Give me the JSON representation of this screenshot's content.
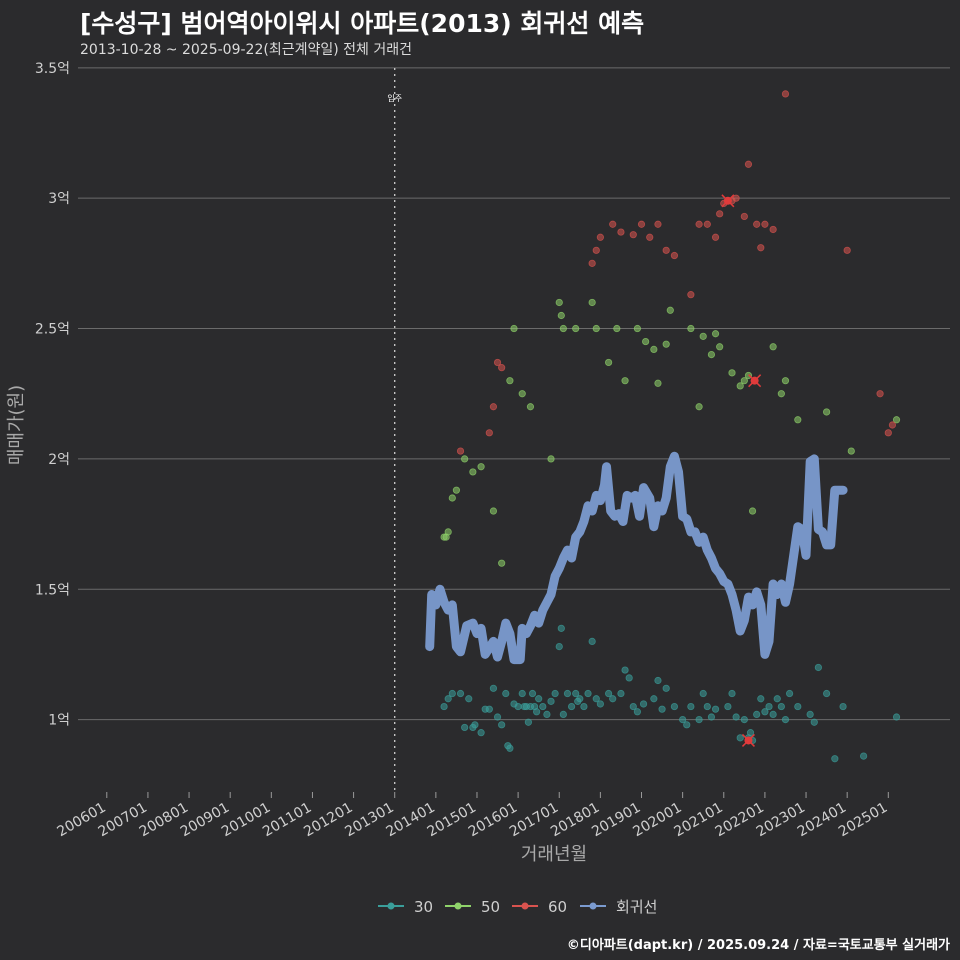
{
  "header": {
    "title": "[수성구] 범어역아이위시 아파트(2013) 회귀선 예측",
    "subtitle": "2013-10-28 ~ 2025-09-22(최근계약일) 전체 거래건"
  },
  "footer": {
    "caption": "©디아파트(dapt.kr) / 2025.09.24 / 자료=국토교통부 실거래가"
  },
  "chart_data": {
    "type": "scatter",
    "title": "[수성구] 범어역아이위시 아파트(2013) 회귀선 예측",
    "subtitle": "2013-10-28 ~ 2025-09-22(최근계약일) 전체 거래건",
    "xlabel": "거래년월",
    "ylabel": "매매가(원)",
    "xlim": [
      2005.3,
      2026.5
    ],
    "ylim": [
      0.73,
      3.53
    ],
    "y_unit": "억",
    "xticks": [
      {
        "value": 2006.0,
        "label": "200601"
      },
      {
        "value": 2007.0,
        "label": "200701"
      },
      {
        "value": 2008.0,
        "label": "200801"
      },
      {
        "value": 2009.0,
        "label": "200901"
      },
      {
        "value": 2010.0,
        "label": "201001"
      },
      {
        "value": 2011.0,
        "label": "201101"
      },
      {
        "value": 2012.0,
        "label": "201201"
      },
      {
        "value": 2013.0,
        "label": "201301"
      },
      {
        "value": 2014.0,
        "label": "201401"
      },
      {
        "value": 2015.0,
        "label": "201501"
      },
      {
        "value": 2016.0,
        "label": "201601"
      },
      {
        "value": 2017.0,
        "label": "201701"
      },
      {
        "value": 2018.0,
        "label": "201801"
      },
      {
        "value": 2019.0,
        "label": "201901"
      },
      {
        "value": 2020.0,
        "label": "202001"
      },
      {
        "value": 2021.0,
        "label": "202101"
      },
      {
        "value": 2022.0,
        "label": "202201"
      },
      {
        "value": 2023.0,
        "label": "202301"
      },
      {
        "value": 2024.0,
        "label": "202401"
      },
      {
        "value": 2025.0,
        "label": "202501"
      }
    ],
    "yticks": [
      {
        "value": 1.0,
        "label": "1억"
      },
      {
        "value": 1.5,
        "label": "1.5억"
      },
      {
        "value": 2.0,
        "label": "2억"
      },
      {
        "value": 2.5,
        "label": "2.5억"
      },
      {
        "value": 3.0,
        "label": "3억"
      },
      {
        "value": 3.5,
        "label": "3.5억"
      }
    ],
    "annotation": {
      "x": 2013.0,
      "label": "입주"
    },
    "legend": {
      "position": "bottom",
      "items": [
        {
          "name": "30",
          "color": "#3a9e9a"
        },
        {
          "name": "50",
          "color": "#8fd36a"
        },
        {
          "name": "60",
          "color": "#d9534f"
        },
        {
          "name": "회귀선",
          "color": "#7b9bd0"
        }
      ]
    },
    "series": [
      {
        "name": "30",
        "color": "#3a9e9a",
        "points": [
          [
            2014.2,
            1.05
          ],
          [
            2014.3,
            1.08
          ],
          [
            2014.4,
            1.1
          ],
          [
            2014.6,
            1.1
          ],
          [
            2014.7,
            0.97
          ],
          [
            2014.8,
            1.08
          ],
          [
            2014.9,
            0.97
          ],
          [
            2014.95,
            0.98
          ],
          [
            2015.1,
            0.95
          ],
          [
            2015.3,
            1.04
          ],
          [
            2015.4,
            1.12
          ],
          [
            2015.5,
            1.01
          ],
          [
            2015.6,
            0.98
          ],
          [
            2015.7,
            1.1
          ],
          [
            2015.75,
            0.9
          ],
          [
            2015.8,
            0.89
          ],
          [
            2015.9,
            1.06
          ],
          [
            2016.0,
            1.05
          ],
          [
            2016.1,
            1.1
          ],
          [
            2016.15,
            1.05
          ],
          [
            2016.2,
            1.05
          ],
          [
            2016.25,
            0.99
          ],
          [
            2016.3,
            1.05
          ],
          [
            2016.35,
            1.1
          ],
          [
            2016.4,
            1.05
          ],
          [
            2016.5,
            1.08
          ],
          [
            2016.6,
            1.05
          ],
          [
            2016.7,
            1.02
          ],
          [
            2016.8,
            1.07
          ],
          [
            2016.9,
            1.1
          ],
          [
            2017.0,
            1.28
          ],
          [
            2017.05,
            1.35
          ],
          [
            2017.1,
            1.02
          ],
          [
            2017.2,
            1.1
          ],
          [
            2017.3,
            1.05
          ],
          [
            2017.4,
            1.1
          ],
          [
            2017.5,
            1.08
          ],
          [
            2017.6,
            1.05
          ],
          [
            2017.7,
            1.1
          ],
          [
            2017.8,
            1.3
          ],
          [
            2017.9,
            1.08
          ],
          [
            2018.0,
            1.06
          ],
          [
            2018.2,
            1.1
          ],
          [
            2018.3,
            1.08
          ],
          [
            2018.5,
            1.1
          ],
          [
            2018.6,
            1.19
          ],
          [
            2018.7,
            1.16
          ],
          [
            2018.8,
            1.05
          ],
          [
            2018.9,
            1.03
          ],
          [
            2019.3,
            1.08
          ],
          [
            2019.4,
            1.15
          ],
          [
            2019.5,
            1.04
          ],
          [
            2019.6,
            1.12
          ],
          [
            2019.8,
            1.05
          ],
          [
            2020.0,
            1.0
          ],
          [
            2020.2,
            1.05
          ],
          [
            2020.4,
            1.0
          ],
          [
            2020.5,
            1.1
          ],
          [
            2020.6,
            1.05
          ],
          [
            2020.7,
            1.01
          ],
          [
            2020.8,
            1.04
          ],
          [
            2021.1,
            1.05
          ],
          [
            2021.2,
            1.1
          ],
          [
            2021.3,
            1.01
          ],
          [
            2021.4,
            0.93
          ],
          [
            2021.5,
            1.0
          ],
          [
            2021.6,
            0.93
          ],
          [
            2021.7,
            0.92
          ],
          [
            2021.8,
            1.02
          ],
          [
            2021.9,
            1.08
          ],
          [
            2022.0,
            1.03
          ],
          [
            2022.1,
            1.05
          ],
          [
            2022.2,
            1.02
          ],
          [
            2022.3,
            1.08
          ],
          [
            2022.4,
            1.05
          ],
          [
            2022.6,
            1.1
          ],
          [
            2022.8,
            1.05
          ],
          [
            2023.1,
            1.02
          ],
          [
            2023.2,
            0.99
          ],
          [
            2023.5,
            1.1
          ],
          [
            2023.7,
            0.85
          ],
          [
            2023.9,
            1.05
          ],
          [
            2024.4,
            0.86
          ],
          [
            2025.2,
            1.01
          ],
          [
            2015.2,
            1.04
          ],
          [
            2016.45,
            1.03
          ],
          [
            2017.45,
            1.07
          ],
          [
            2020.1,
            0.98
          ],
          [
            2021.65,
            0.95
          ],
          [
            2022.5,
            1.0
          ],
          [
            2023.3,
            1.2
          ],
          [
            2019.05,
            1.06
          ]
        ]
      },
      {
        "name": "50",
        "color": "#8fd36a",
        "points": [
          [
            2014.2,
            1.7
          ],
          [
            2014.3,
            1.72
          ],
          [
            2014.4,
            1.85
          ],
          [
            2014.5,
            1.88
          ],
          [
            2014.7,
            2.0
          ],
          [
            2014.9,
            1.95
          ],
          [
            2015.1,
            1.97
          ],
          [
            2015.4,
            1.8
          ],
          [
            2015.6,
            1.6
          ],
          [
            2015.8,
            2.3
          ],
          [
            2015.9,
            2.5
          ],
          [
            2016.1,
            2.25
          ],
          [
            2016.3,
            2.2
          ],
          [
            2016.8,
            2.0
          ],
          [
            2017.0,
            2.6
          ],
          [
            2017.05,
            2.55
          ],
          [
            2017.1,
            2.5
          ],
          [
            2017.4,
            2.5
          ],
          [
            2017.8,
            2.6
          ],
          [
            2017.9,
            2.5
          ],
          [
            2018.2,
            2.37
          ],
          [
            2018.4,
            2.5
          ],
          [
            2018.6,
            2.3
          ],
          [
            2018.9,
            2.5
          ],
          [
            2019.1,
            2.45
          ],
          [
            2019.3,
            2.42
          ],
          [
            2019.4,
            2.29
          ],
          [
            2019.6,
            2.44
          ],
          [
            2019.7,
            2.57
          ],
          [
            2020.2,
            2.5
          ],
          [
            2020.4,
            2.2
          ],
          [
            2020.5,
            2.47
          ],
          [
            2020.7,
            2.4
          ],
          [
            2020.8,
            2.48
          ],
          [
            2020.9,
            2.43
          ],
          [
            2021.2,
            2.33
          ],
          [
            2021.4,
            2.28
          ],
          [
            2021.5,
            2.3
          ],
          [
            2021.6,
            2.32
          ],
          [
            2021.7,
            1.8
          ],
          [
            2022.2,
            2.43
          ],
          [
            2022.4,
            2.25
          ],
          [
            2022.5,
            2.3
          ],
          [
            2022.8,
            2.15
          ],
          [
            2023.5,
            2.18
          ],
          [
            2024.1,
            2.03
          ],
          [
            2025.2,
            2.15
          ],
          [
            2014.25,
            1.7
          ]
        ]
      },
      {
        "name": "60",
        "color": "#d9534f",
        "points": [
          [
            2014.6,
            2.03
          ],
          [
            2015.3,
            2.1
          ],
          [
            2015.4,
            2.2
          ],
          [
            2015.5,
            2.37
          ],
          [
            2015.6,
            2.35
          ],
          [
            2017.8,
            2.75
          ],
          [
            2017.9,
            2.8
          ],
          [
            2018.0,
            2.85
          ],
          [
            2018.3,
            2.9
          ],
          [
            2018.5,
            2.87
          ],
          [
            2018.8,
            2.86
          ],
          [
            2019.0,
            2.9
          ],
          [
            2019.2,
            2.85
          ],
          [
            2019.4,
            2.9
          ],
          [
            2019.6,
            2.8
          ],
          [
            2019.8,
            2.78
          ],
          [
            2020.2,
            2.63
          ],
          [
            2020.4,
            2.9
          ],
          [
            2020.6,
            2.9
          ],
          [
            2020.8,
            2.85
          ],
          [
            2020.9,
            2.94
          ],
          [
            2021.0,
            2.98
          ],
          [
            2021.2,
            2.99
          ],
          [
            2021.3,
            3.0
          ],
          [
            2021.5,
            2.93
          ],
          [
            2021.6,
            3.13
          ],
          [
            2021.8,
            2.9
          ],
          [
            2021.9,
            2.81
          ],
          [
            2022.0,
            2.9
          ],
          [
            2022.2,
            2.88
          ],
          [
            2022.5,
            3.4
          ],
          [
            2024.0,
            2.8
          ],
          [
            2024.8,
            2.25
          ],
          [
            2025.0,
            2.1
          ],
          [
            2025.1,
            2.13
          ]
        ]
      }
    ],
    "highlights": [
      {
        "x": 2021.1,
        "y": 2.99
      },
      {
        "x": 2021.75,
        "y": 2.3
      },
      {
        "x": 2021.6,
        "y": 0.92
      }
    ],
    "regression": {
      "name": "회귀선",
      "color": "#7b9bd0",
      "points": [
        [
          2013.85,
          1.28
        ],
        [
          2013.9,
          1.48
        ],
        [
          2014.0,
          1.44
        ],
        [
          2014.1,
          1.5
        ],
        [
          2014.2,
          1.45
        ],
        [
          2014.3,
          1.42
        ],
        [
          2014.4,
          1.44
        ],
        [
          2014.5,
          1.28
        ],
        [
          2014.6,
          1.26
        ],
        [
          2014.75,
          1.36
        ],
        [
          2014.9,
          1.37
        ],
        [
          2015.0,
          1.33
        ],
        [
          2015.1,
          1.35
        ],
        [
          2015.2,
          1.25
        ],
        [
          2015.4,
          1.3
        ],
        [
          2015.5,
          1.24
        ],
        [
          2015.6,
          1.3
        ],
        [
          2015.7,
          1.37
        ],
        [
          2015.8,
          1.33
        ],
        [
          2015.9,
          1.23
        ],
        [
          2016.05,
          1.23
        ],
        [
          2016.1,
          1.35
        ],
        [
          2016.2,
          1.33
        ],
        [
          2016.3,
          1.36
        ],
        [
          2016.4,
          1.4
        ],
        [
          2016.5,
          1.37
        ],
        [
          2016.6,
          1.42
        ],
        [
          2016.7,
          1.45
        ],
        [
          2016.8,
          1.48
        ],
        [
          2016.9,
          1.55
        ],
        [
          2017.0,
          1.58
        ],
        [
          2017.1,
          1.62
        ],
        [
          2017.2,
          1.65
        ],
        [
          2017.3,
          1.62
        ],
        [
          2017.4,
          1.7
        ],
        [
          2017.5,
          1.72
        ],
        [
          2017.6,
          1.76
        ],
        [
          2017.7,
          1.82
        ],
        [
          2017.8,
          1.8
        ],
        [
          2017.9,
          1.86
        ],
        [
          2018.0,
          1.84
        ],
        [
          2018.1,
          1.9
        ],
        [
          2018.15,
          1.97
        ],
        [
          2018.25,
          1.8
        ],
        [
          2018.35,
          1.78
        ],
        [
          2018.45,
          1.79
        ],
        [
          2018.55,
          1.76
        ],
        [
          2018.65,
          1.86
        ],
        [
          2018.75,
          1.85
        ],
        [
          2018.85,
          1.86
        ],
        [
          2018.95,
          1.78
        ],
        [
          2019.05,
          1.89
        ],
        [
          2019.2,
          1.85
        ],
        [
          2019.3,
          1.74
        ],
        [
          2019.4,
          1.82
        ],
        [
          2019.5,
          1.8
        ],
        [
          2019.6,
          1.85
        ],
        [
          2019.7,
          1.97
        ],
        [
          2019.8,
          2.01
        ],
        [
          2019.9,
          1.95
        ],
        [
          2020.0,
          1.78
        ],
        [
          2020.1,
          1.77
        ],
        [
          2020.2,
          1.72
        ],
        [
          2020.3,
          1.72
        ],
        [
          2020.4,
          1.68
        ],
        [
          2020.5,
          1.7
        ],
        [
          2020.6,
          1.65
        ],
        [
          2020.7,
          1.62
        ],
        [
          2020.8,
          1.58
        ],
        [
          2020.9,
          1.56
        ],
        [
          2021.0,
          1.53
        ],
        [
          2021.1,
          1.52
        ],
        [
          2021.2,
          1.48
        ],
        [
          2021.3,
          1.42
        ],
        [
          2021.4,
          1.34
        ],
        [
          2021.5,
          1.38
        ],
        [
          2021.6,
          1.47
        ],
        [
          2021.7,
          1.44
        ],
        [
          2021.8,
          1.49
        ],
        [
          2021.9,
          1.44
        ],
        [
          2022.0,
          1.25
        ],
        [
          2022.1,
          1.3
        ],
        [
          2022.2,
          1.52
        ],
        [
          2022.3,
          1.48
        ],
        [
          2022.4,
          1.52
        ],
        [
          2022.5,
          1.45
        ],
        [
          2022.6,
          1.52
        ],
        [
          2022.7,
          1.63
        ],
        [
          2022.8,
          1.74
        ],
        [
          2022.9,
          1.73
        ],
        [
          2023.0,
          1.63
        ],
        [
          2023.1,
          1.99
        ],
        [
          2023.2,
          2.0
        ],
        [
          2023.3,
          1.73
        ],
        [
          2023.4,
          1.72
        ],
        [
          2023.5,
          1.67
        ],
        [
          2023.6,
          1.67
        ],
        [
          2023.7,
          1.88
        ],
        [
          2023.8,
          1.88
        ],
        [
          2023.9,
          1.88
        ]
      ]
    }
  }
}
